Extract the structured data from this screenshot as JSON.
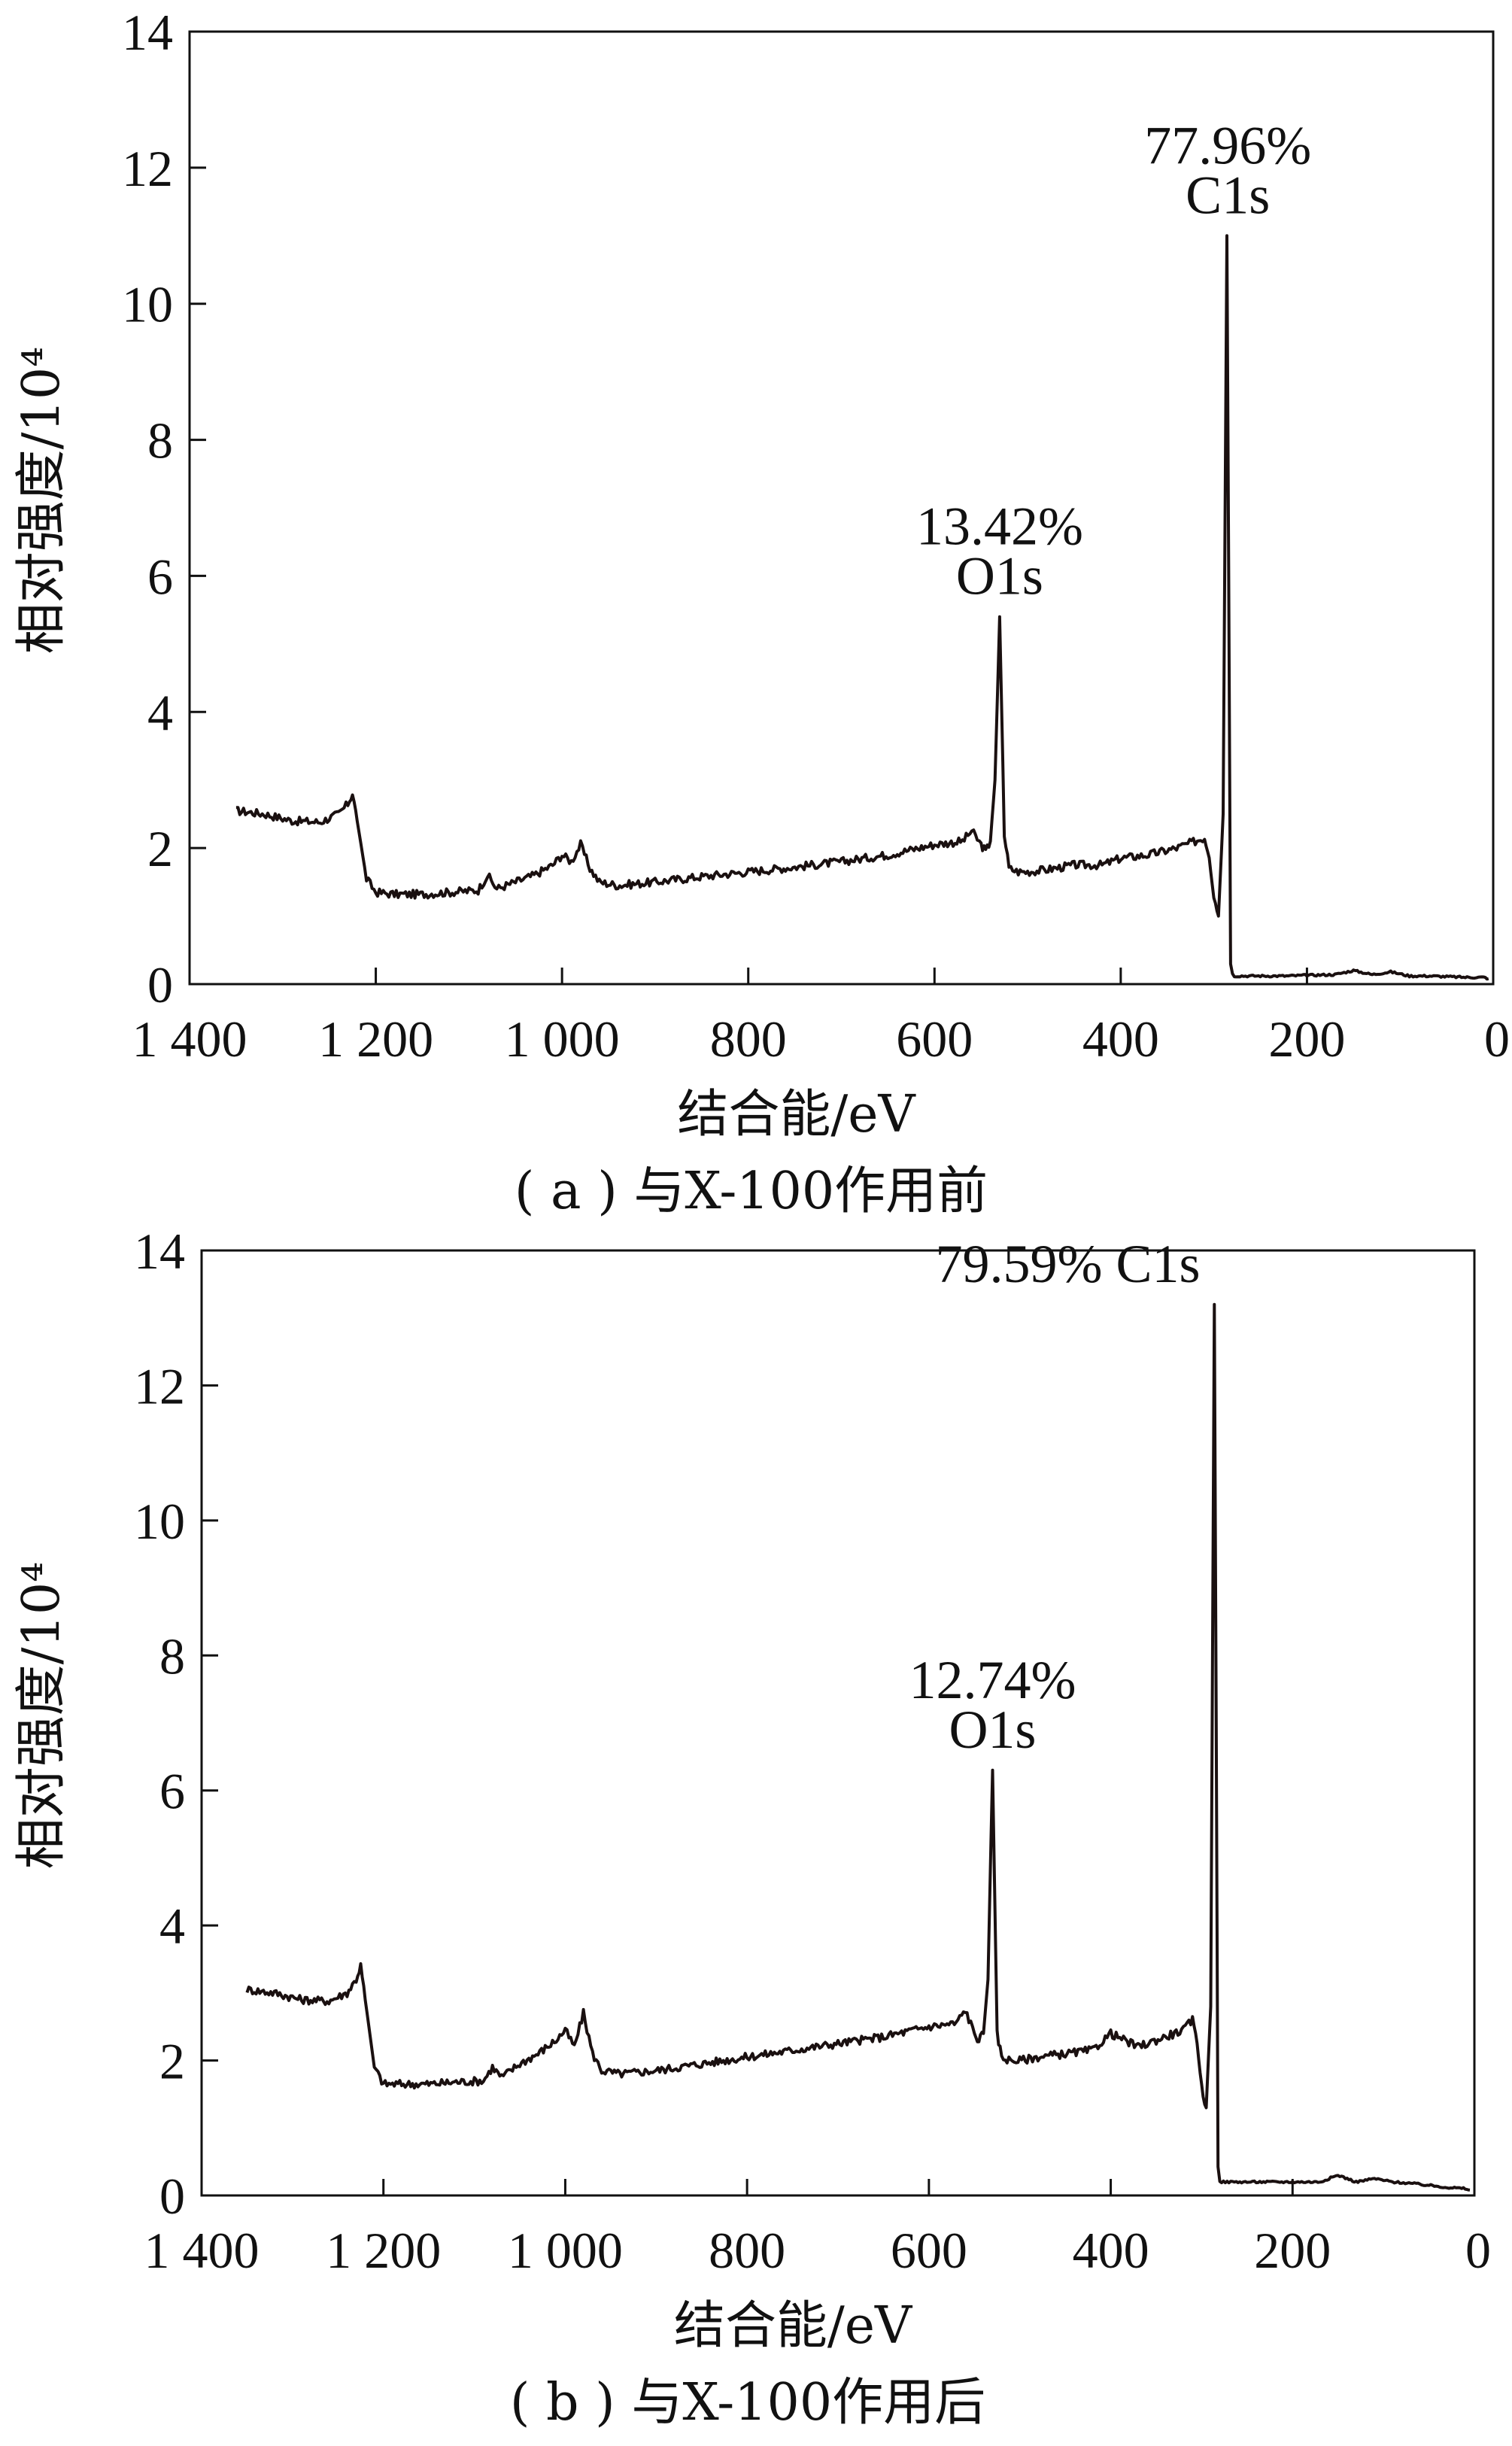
{
  "chart_data": [
    {
      "type": "line",
      "caption": "( a ) 与X-100作用前",
      "xlabel": "结合能/eV",
      "ylabel": "相对强度/10⁴",
      "xlim": [
        1400,
        0
      ],
      "ylim": [
        0,
        14
      ],
      "xticks": [
        1400,
        1200,
        1000,
        800,
        600,
        400,
        200,
        0
      ],
      "xtick_labels": [
        "1 400",
        "1 200",
        "1 000",
        "800",
        "600",
        "400",
        "200",
        "0"
      ],
      "yticks": [
        0,
        2,
        4,
        6,
        8,
        10,
        12,
        14
      ],
      "ytick_labels": [
        "0",
        "2",
        "4",
        "6",
        "8",
        "10",
        "12",
        "14"
      ],
      "grid": false,
      "annotations": [
        {
          "lines": [
            "13.42%",
            "O1s"
          ],
          "x": 530,
          "y": 5.4
        },
        {
          "lines": [
            "77.96%",
            "C1s"
          ],
          "x": 285,
          "y": 11.0
        }
      ],
      "series": [
        {
          "x": [
            1350,
            1320,
            1290,
            1260,
            1240,
            1230,
            1225,
            1220,
            1210,
            1200,
            1180,
            1150,
            1120,
            1090,
            1080,
            1070,
            1050,
            1030,
            1010,
            1000,
            990,
            980,
            970,
            960,
            940,
            900,
            850,
            800,
            750,
            700,
            650,
            600,
            570,
            560,
            550,
            545,
            540,
            535,
            530,
            525,
            520,
            510,
            500,
            480,
            450,
            420,
            400,
            370,
            340,
            320,
            310,
            305,
            300,
            295,
            290,
            286,
            284,
            282,
            280,
            278,
            270,
            250,
            220,
            200,
            170,
            150,
            130,
            110,
            90,
            70,
            50,
            30,
            10,
            5
          ],
          "y": [
            2.55,
            2.5,
            2.4,
            2.38,
            2.5,
            2.65,
            2.8,
            2.4,
            1.55,
            1.35,
            1.32,
            1.32,
            1.35,
            1.38,
            1.6,
            1.4,
            1.5,
            1.6,
            1.75,
            1.9,
            1.8,
            2.05,
            1.7,
            1.5,
            1.45,
            1.5,
            1.58,
            1.65,
            1.72,
            1.8,
            1.9,
            2.05,
            2.1,
            2.25,
            2.05,
            1.95,
            2.1,
            3.0,
            5.4,
            2.2,
            1.7,
            1.65,
            1.65,
            1.68,
            1.75,
            1.75,
            1.85,
            1.9,
            2.0,
            2.1,
            2.15,
            1.9,
            1.3,
            1.0,
            2.5,
            11.0,
            6.0,
            0.35,
            0.15,
            0.12,
            0.12,
            0.12,
            0.12,
            0.13,
            0.14,
            0.2,
            0.14,
            0.18,
            0.12,
            0.12,
            0.11,
            0.1,
            0.1,
            0.08
          ]
        }
      ]
    },
    {
      "type": "line",
      "caption": "( b ) 与X-100作用后",
      "xlabel": "结合能/eV",
      "ylabel": "相对强度/10⁴",
      "xlim": [
        1400,
        0
      ],
      "ylim": [
        0,
        14
      ],
      "xticks": [
        1400,
        1200,
        1000,
        800,
        600,
        400,
        200,
        0
      ],
      "xtick_labels": [
        "1 400",
        "1 200",
        "1 000",
        "800",
        "600",
        "400",
        "200",
        "0"
      ],
      "yticks": [
        0,
        2,
        4,
        6,
        8,
        10,
        12,
        14
      ],
      "ytick_labels": [
        "0",
        "2",
        "4",
        "6",
        "8",
        "10",
        "12",
        "14"
      ],
      "grid": false,
      "annotations": [
        {
          "lines": [
            "12.74%",
            "O1s"
          ],
          "x": 530,
          "y": 6.3
        },
        {
          "lines": [
            "79.59% C1s"
          ],
          "x": 285,
          "y": 13.2
        }
      ],
      "series": [
        {
          "x": [
            1350,
            1320,
            1290,
            1260,
            1240,
            1230,
            1225,
            1220,
            1210,
            1200,
            1180,
            1150,
            1120,
            1090,
            1080,
            1070,
            1050,
            1030,
            1010,
            1000,
            990,
            980,
            970,
            960,
            940,
            900,
            850,
            800,
            750,
            700,
            650,
            600,
            570,
            560,
            550,
            545,
            540,
            535,
            530,
            525,
            520,
            510,
            500,
            480,
            450,
            420,
            400,
            370,
            340,
            320,
            310,
            305,
            300,
            295,
            290,
            286,
            284,
            282,
            280,
            278,
            270,
            250,
            220,
            200,
            170,
            150,
            130,
            110,
            90,
            70,
            50,
            30,
            10,
            5
          ],
          "y": [
            3.05,
            3.0,
            2.9,
            2.88,
            3.0,
            3.2,
            3.4,
            2.9,
            1.9,
            1.65,
            1.65,
            1.65,
            1.68,
            1.7,
            1.9,
            1.75,
            1.95,
            2.1,
            2.3,
            2.45,
            2.2,
            2.7,
            2.1,
            1.85,
            1.8,
            1.85,
            1.95,
            2.05,
            2.15,
            2.25,
            2.35,
            2.5,
            2.55,
            2.75,
            2.4,
            2.3,
            2.4,
            3.2,
            6.3,
            2.4,
            2.05,
            2.0,
            2.0,
            2.05,
            2.1,
            2.15,
            2.4,
            2.2,
            2.35,
            2.45,
            2.6,
            2.3,
            1.6,
            1.3,
            2.8,
            13.2,
            7.0,
            0.4,
            0.22,
            0.2,
            0.2,
            0.2,
            0.2,
            0.2,
            0.2,
            0.3,
            0.2,
            0.25,
            0.2,
            0.18,
            0.15,
            0.12,
            0.1,
            0.08
          ]
        }
      ]
    }
  ]
}
